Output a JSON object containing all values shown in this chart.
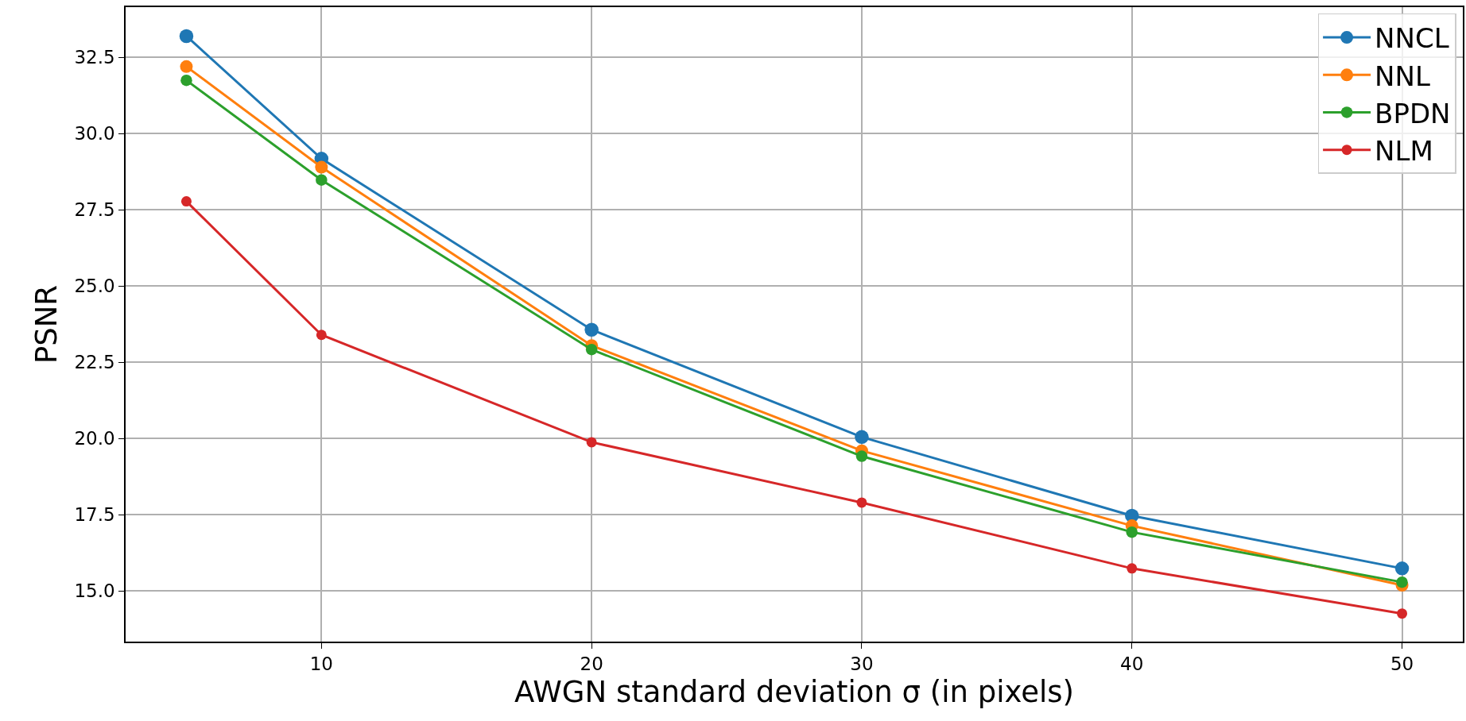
{
  "chart_data": {
    "type": "line",
    "xlabel": "AWGN standard deviation σ (in pixels)",
    "ylabel": "PSNR",
    "x": [
      5,
      10,
      20,
      30,
      40,
      50
    ],
    "series": [
      {
        "name": "NNCL",
        "color": "#1f77b4",
        "values": [
          33.2,
          29.18,
          23.57,
          20.05,
          17.47,
          15.74
        ]
      },
      {
        "name": "NNL",
        "color": "#ff7f0e",
        "values": [
          32.2,
          28.9,
          23.05,
          19.6,
          17.14,
          15.19
        ]
      },
      {
        "name": "BPDN",
        "color": "#2ca02c",
        "values": [
          31.75,
          28.48,
          22.92,
          19.42,
          16.93,
          15.29
        ]
      },
      {
        "name": "NLM",
        "color": "#d62728",
        "values": [
          27.78,
          23.4,
          19.88,
          17.9,
          15.74,
          14.26
        ]
      }
    ],
    "xlim": [
      2.75,
      52.25
    ],
    "xticks": [
      10,
      20,
      30,
      40,
      50
    ],
    "ylim": [
      13.34,
      34.15
    ],
    "yticks": [
      {
        "value": 15,
        "label": "15.0"
      },
      {
        "value": 17.5,
        "label": "17.5"
      },
      {
        "value": 20,
        "label": "20.0"
      },
      {
        "value": 22.5,
        "label": "22.5"
      },
      {
        "value": 25,
        "label": "25.0"
      },
      {
        "value": 27.5,
        "label": "27.5"
      },
      {
        "value": 30,
        "label": "30.0"
      },
      {
        "value": 32.5,
        "label": "32.5"
      }
    ],
    "grid": true,
    "legend": "top right",
    "marker": "circle",
    "line_style": "solid"
  }
}
